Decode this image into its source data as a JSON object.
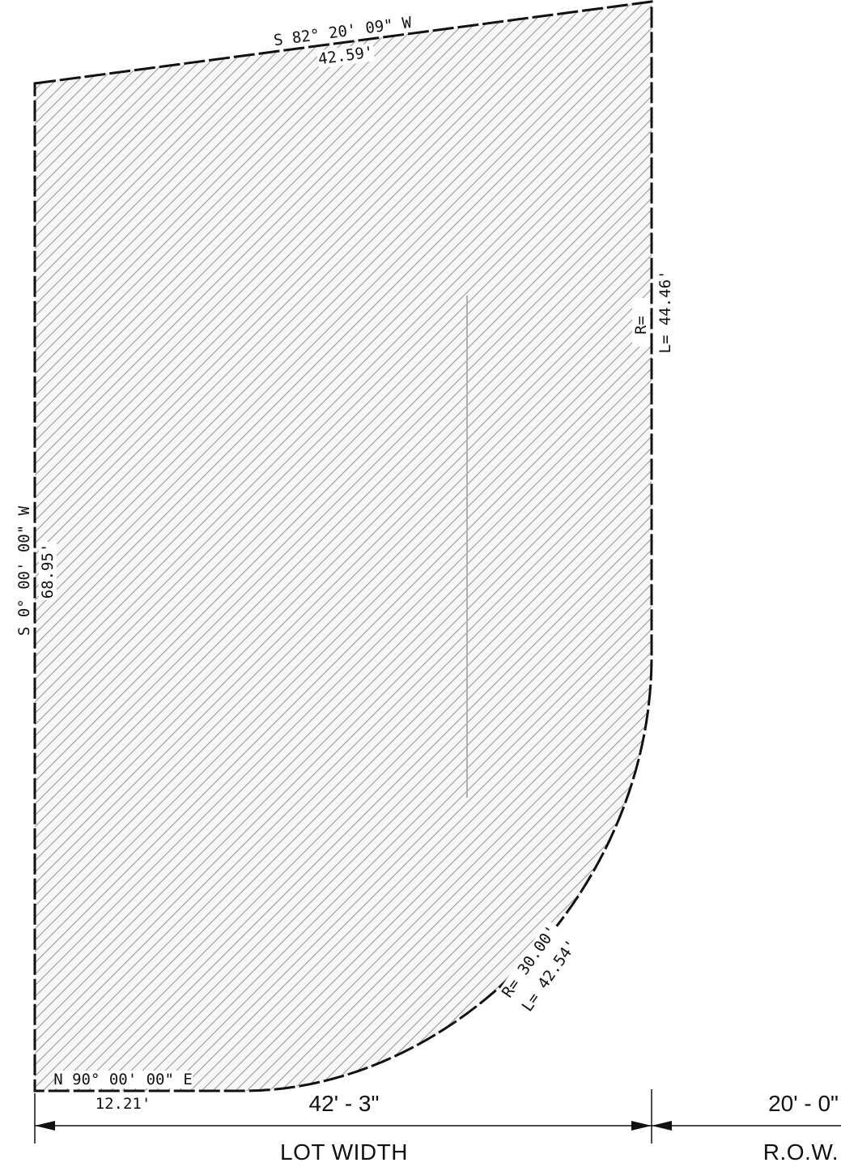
{
  "plan": {
    "top_bearing": "S 82° 20' 09\" W",
    "top_distance": "42.59'",
    "left_bearing": "S 0° 00' 00\" W",
    "left_distance": "68.95'",
    "bottom_bearing": "N 90° 00' 00\" E",
    "bottom_distance": "12.21'",
    "right_radius": "R=",
    "right_length": "L= 44.46'",
    "curve_radius": "R= 30.00'",
    "curve_length": "L= 42.54'"
  },
  "dimensions": {
    "lot_width_value": "42' - 3\"",
    "lot_width_label": "LOT WIDTH",
    "row_value": "20' - 0\"",
    "row_label": "R.O.W."
  },
  "colors": {
    "boundary": "#111111",
    "hatch": "#9a9a9a",
    "fill": "#f7f7f7"
  }
}
